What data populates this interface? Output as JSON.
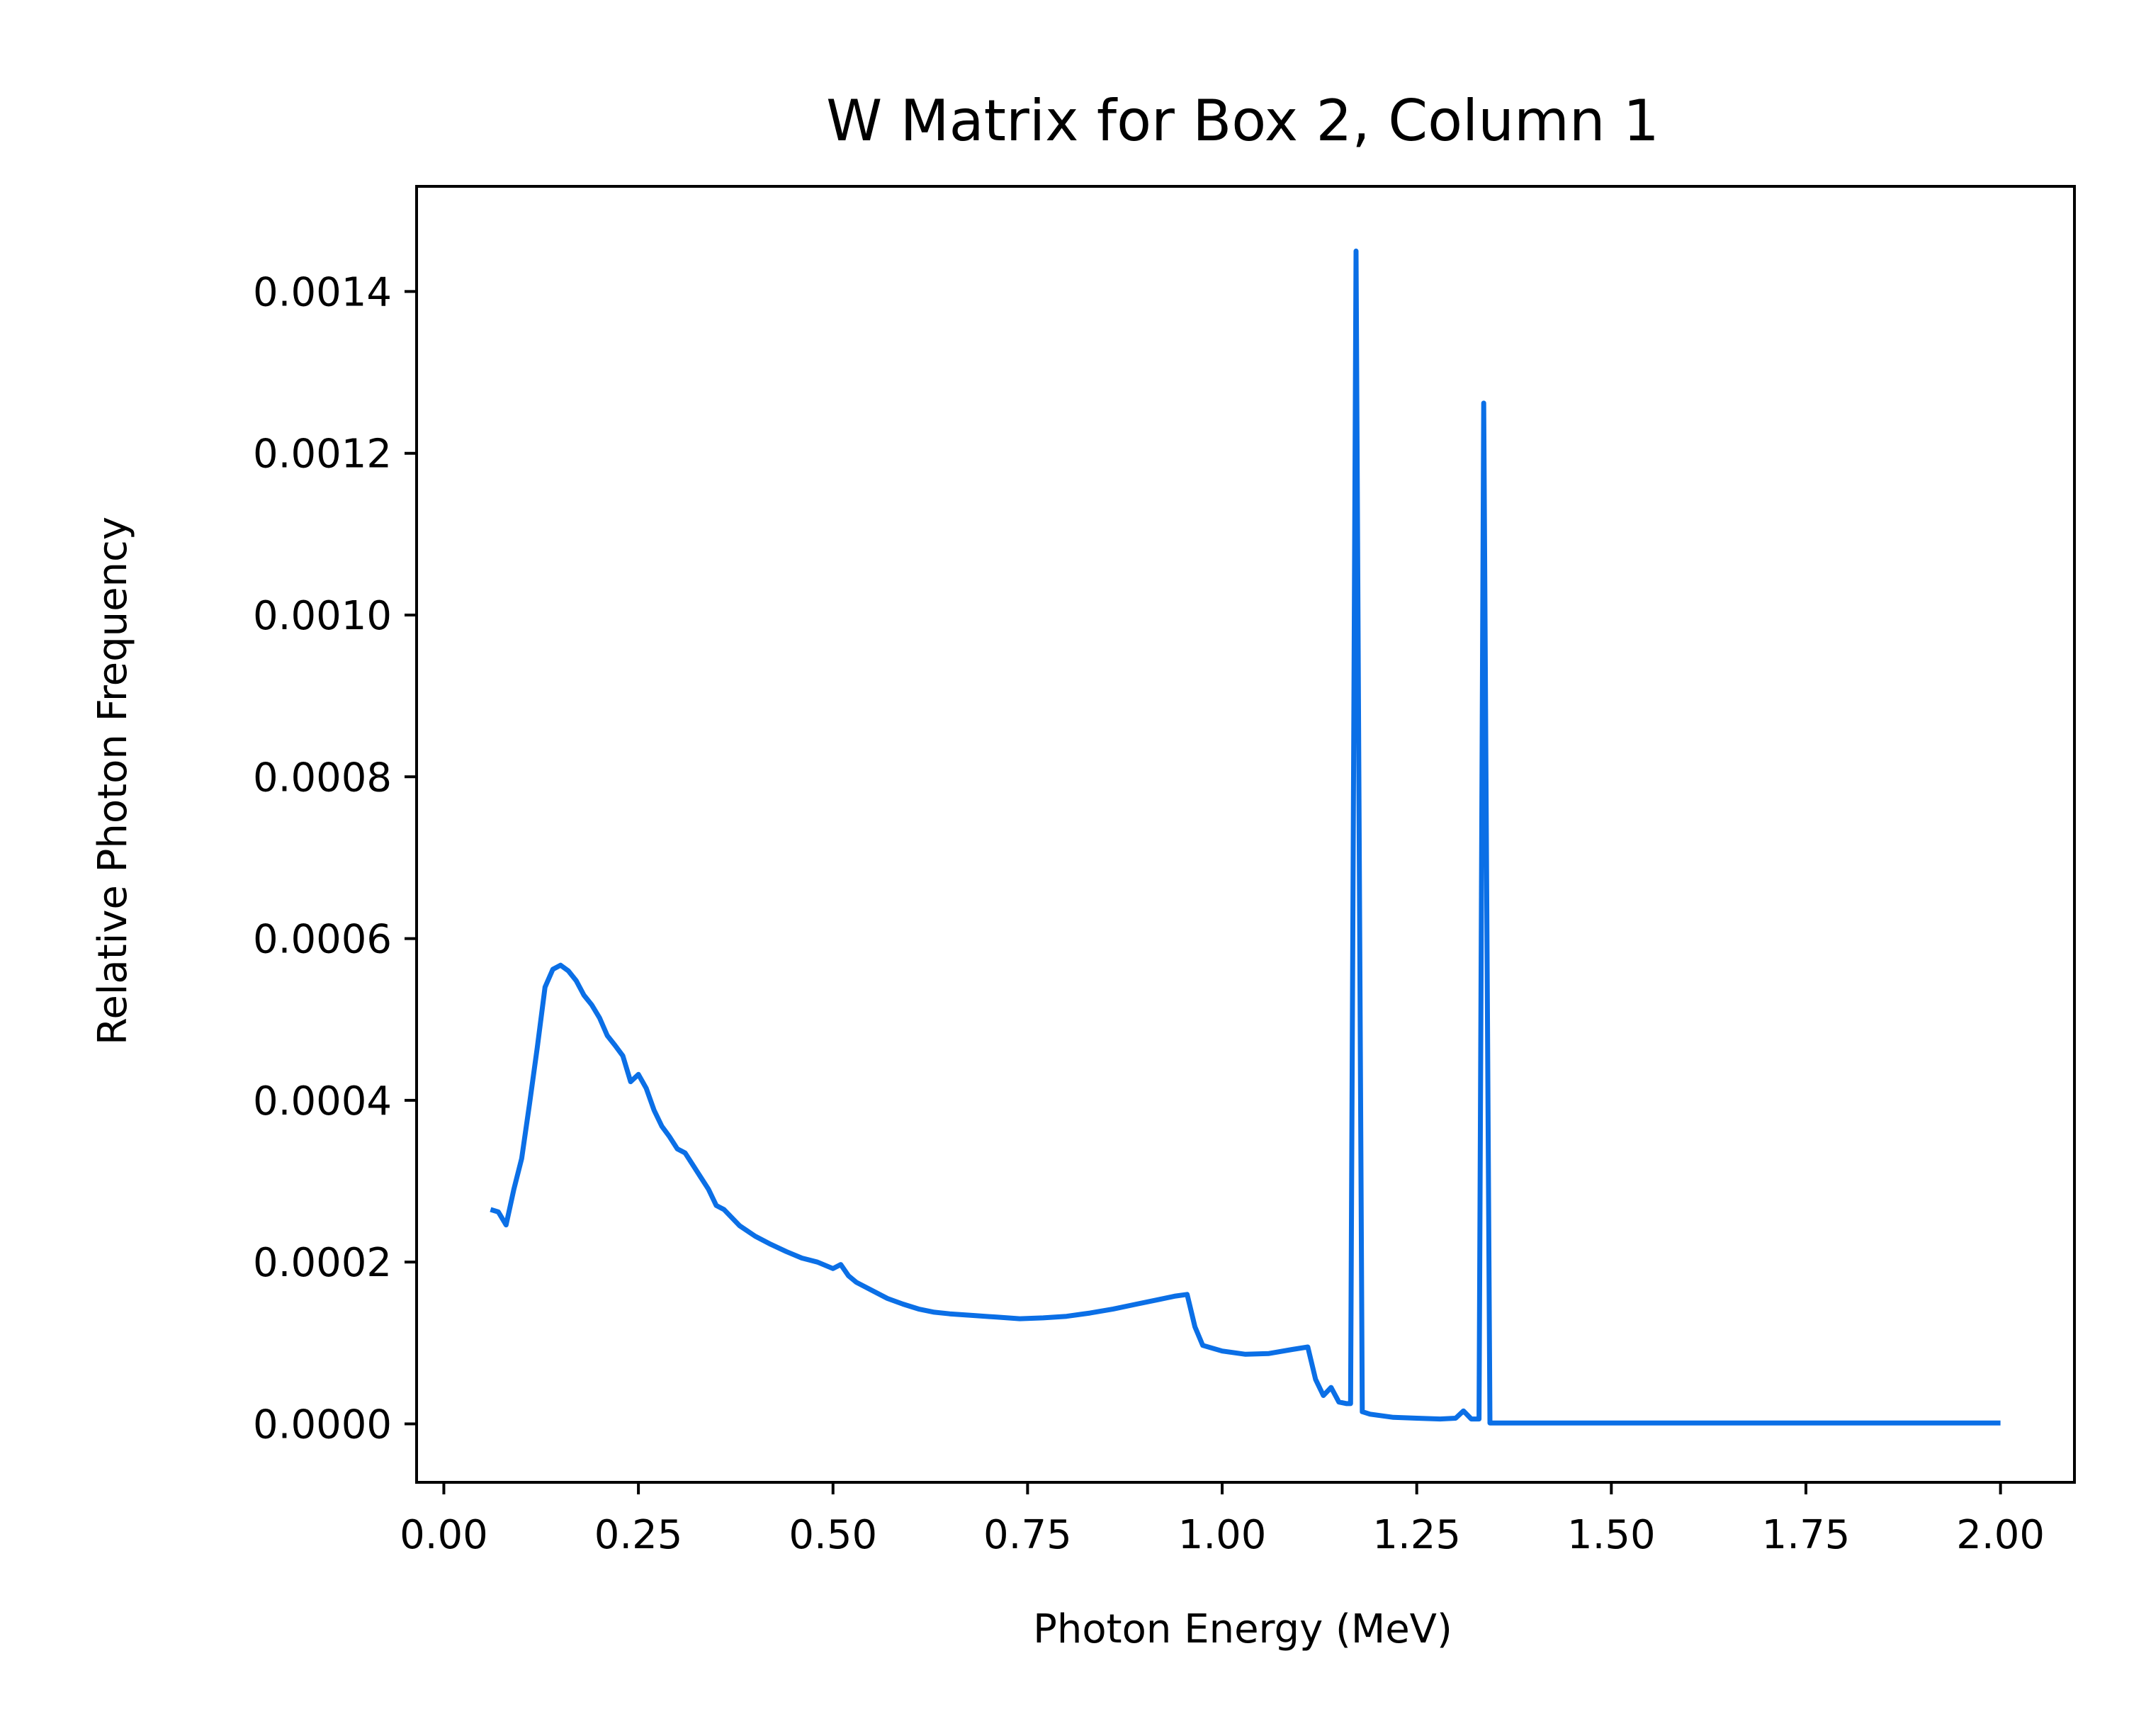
{
  "chart_data": {
    "type": "line",
    "title": "W Matrix for Box 2, Column 1",
    "xlabel": "Photon Energy (MeV)",
    "ylabel": "Relative Photon Frequency",
    "xlim": [
      -0.035,
      2.095
    ],
    "ylim": [
      -7.23e-05,
      0.00153
    ],
    "xticks": [
      0.0,
      0.25,
      0.5,
      0.75,
      1.0,
      1.25,
      1.5,
      1.75,
      2.0
    ],
    "xtick_labels": [
      "0.00",
      "0.25",
      "0.50",
      "0.75",
      "1.00",
      "1.25",
      "1.50",
      "1.75",
      "2.00"
    ],
    "yticks": [
      0.0,
      0.0002,
      0.0004,
      0.0006,
      0.0008,
      0.001,
      0.0012,
      0.0014
    ],
    "ytick_labels": [
      "0.0000",
      "0.0002",
      "0.0004",
      "0.0006",
      "0.0008",
      "0.0010",
      "0.0012",
      "0.0014"
    ],
    "grid": false,
    "line_color": "#0b6fe6",
    "series": [
      {
        "x": [
          0.06,
          0.07,
          0.08,
          0.09,
          0.1,
          0.11,
          0.12,
          0.13,
          0.14,
          0.15,
          0.16,
          0.17,
          0.18,
          0.19,
          0.2,
          0.21,
          0.22,
          0.23,
          0.24,
          0.25,
          0.26,
          0.27,
          0.28,
          0.29,
          0.3,
          0.31,
          0.32,
          0.33,
          0.34,
          0.35,
          0.36,
          0.38,
          0.4,
          0.42,
          0.44,
          0.46,
          0.48,
          0.5,
          0.51,
          0.52,
          0.53,
          0.55,
          0.57,
          0.59,
          0.61,
          0.63,
          0.65,
          0.68,
          0.71,
          0.74,
          0.77,
          0.8,
          0.83,
          0.86,
          0.89,
          0.92,
          0.94,
          0.955,
          0.965,
          0.975,
          1.0,
          1.03,
          1.06,
          1.09,
          1.11,
          1.12,
          1.13,
          1.14,
          1.15,
          1.16,
          1.165,
          1.172,
          1.18,
          1.19,
          1.22,
          1.25,
          1.28,
          1.3,
          1.31,
          1.32,
          1.33,
          1.336,
          1.344,
          1.35,
          1.5,
          1.75,
          2.0
        ],
        "y": [
          0.000265,
          0.000262,
          0.000246,
          0.00029,
          0.000328,
          0.000395,
          0.000465,
          0.00054,
          0.000562,
          0.000567,
          0.00056,
          0.000548,
          0.00053,
          0.000518,
          0.000502,
          0.00048,
          0.000468,
          0.000455,
          0.000423,
          0.000432,
          0.000415,
          0.000388,
          0.000368,
          0.000355,
          0.00034,
          0.000335,
          0.00032,
          0.000305,
          0.00029,
          0.00027,
          0.000265,
          0.000245,
          0.000232,
          0.000222,
          0.000213,
          0.000205,
          0.0002,
          0.000192,
          0.000197,
          0.000183,
          0.000175,
          0.000165,
          0.000155,
          0.000148,
          0.000142,
          0.000138,
          0.000136,
          0.000134,
          0.000132,
          0.00013,
          0.000131,
          0.000133,
          0.000137,
          0.000142,
          0.000148,
          0.000154,
          0.000158,
          0.00016,
          0.00012,
          9.7e-05,
          9e-05,
          8.6e-05,
          8.7e-05,
          9.2e-05,
          9.5e-05,
          5.5e-05,
          3.5e-05,
          4.5e-05,
          2.7e-05,
          2.5e-05,
          2.5e-05,
          0.00145,
          1.5e-05,
          1.2e-05,
          8e-06,
          7e-06,
          6e-06,
          7e-06,
          1.6e-05,
          6e-06,
          6e-06,
          0.001262,
          1e-06,
          1e-06,
          1e-06,
          1e-06,
          1e-06
        ]
      }
    ]
  }
}
